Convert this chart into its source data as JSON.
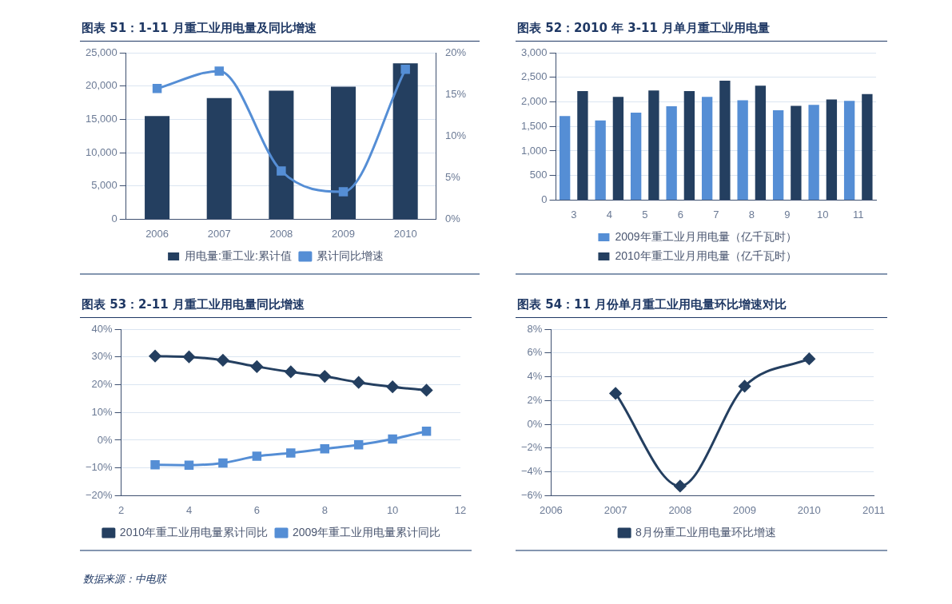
{
  "chart_data": [
    {
      "type": "bar",
      "title": "图表 51：1-11 月重工业用电量及同比增速",
      "categories": [
        "2006",
        "2007",
        "2008",
        "2009",
        "2010"
      ],
      "series": [
        {
          "name": "用电量:重工业:累计值",
          "color": "#243f60",
          "values": [
            15500,
            18200,
            19300,
            19900,
            23400
          ]
        },
        {
          "name": "累计同比增速",
          "type": "line",
          "axis": "y2",
          "marker": "square",
          "color": "#558ed5",
          "values": [
            15.7,
            17.8,
            5.8,
            3.3,
            18.0
          ]
        }
      ],
      "ylim": [
        0,
        25000
      ],
      "yticks": [
        {
          "value": 0,
          "label": "0"
        },
        {
          "value": 5000,
          "label": "5,000"
        },
        {
          "value": 10000,
          "label": "10,000"
        },
        {
          "value": 15000,
          "label": "15,000"
        },
        {
          "value": 20000,
          "label": "20,000"
        },
        {
          "value": 25000,
          "label": "25,000"
        }
      ],
      "y2lim": [
        0,
        20
      ],
      "y2ticks": [
        {
          "value": 0,
          "label": "0%"
        },
        {
          "value": 5,
          "label": "5%"
        },
        {
          "value": 10,
          "label": "10%"
        },
        {
          "value": 15,
          "label": "15%"
        },
        {
          "value": 20,
          "label": "20%"
        }
      ],
      "grid": "y",
      "legend": "bottom"
    },
    {
      "type": "bar",
      "title": "图表 52：2010 年 3-11 月单月重工业用电量",
      "categories": [
        "3",
        "4",
        "5",
        "6",
        "7",
        "8",
        "9",
        "10",
        "11"
      ],
      "series": [
        {
          "name": "2009年重工业月用电量（亿千瓦时）",
          "color": "#558ed5",
          "values": [
            1710,
            1620,
            1780,
            1910,
            2100,
            2030,
            1830,
            1940,
            2020
          ]
        },
        {
          "name": "2010年重工业月用电量（亿千瓦时）",
          "color": "#243f60",
          "values": [
            2220,
            2100,
            2230,
            2220,
            2430,
            2330,
            1920,
            2050,
            2160
          ]
        }
      ],
      "ylim": [
        0,
        3000
      ],
      "yticks": [
        {
          "value": 0,
          "label": "0"
        },
        {
          "value": 500,
          "label": "500"
        },
        {
          "value": 1000,
          "label": "1,000"
        },
        {
          "value": 1500,
          "label": "1,500"
        },
        {
          "value": 2000,
          "label": "2,000"
        },
        {
          "value": 2500,
          "label": "2,500"
        },
        {
          "value": 3000,
          "label": "3,000"
        }
      ],
      "grid": "y",
      "legend": "bottom"
    },
    {
      "type": "line",
      "title": "图表 53：2-11 月重工业用电量同比增速",
      "x": [
        3,
        4,
        5,
        6,
        7,
        8,
        9,
        10,
        11
      ],
      "series": [
        {
          "name": "2010年重工业用电量累计同比",
          "color": "#243f60",
          "marker": "diamond",
          "values": [
            30.3,
            30.0,
            28.8,
            26.5,
            24.6,
            23.0,
            20.8,
            19.2,
            18.0
          ]
        },
        {
          "name": "2009年重工业用电量累计同比",
          "color": "#558ed5",
          "marker": "square",
          "values": [
            -8.9,
            -9.0,
            -8.2,
            -5.8,
            -4.6,
            -3.1,
            -1.7,
            0.4,
            3.2
          ]
        }
      ],
      "xlim": [
        2,
        12
      ],
      "xticks": [
        2,
        4,
        6,
        8,
        10,
        12
      ],
      "ylim": [
        -20,
        40
      ],
      "yticks": [
        {
          "value": -20,
          "label": "−20%"
        },
        {
          "value": -10,
          "label": "−10%"
        },
        {
          "value": 0,
          "label": "0%"
        },
        {
          "value": 10,
          "label": "10%"
        },
        {
          "value": 20,
          "label": "20%"
        },
        {
          "value": 30,
          "label": "30%"
        },
        {
          "value": 40,
          "label": "40%"
        }
      ],
      "grid": "y",
      "legend": "bottom"
    },
    {
      "type": "line",
      "title": "图表 54：11 月份单月重工业用电量环比增速对比",
      "x": [
        2007,
        2008,
        2009,
        2010
      ],
      "series": [
        {
          "name": "8月份重工业用电量环比增速",
          "color": "#243f60",
          "marker": "diamond",
          "values": [
            2.6,
            -5.2,
            3.2,
            5.5
          ]
        }
      ],
      "xlim": [
        2006,
        2011
      ],
      "xticks": [
        2006,
        2007,
        2008,
        2009,
        2010,
        2011
      ],
      "ylim": [
        -6,
        8
      ],
      "yticks": [
        {
          "value": -6,
          "label": "−6%"
        },
        {
          "value": -4,
          "label": "−4%"
        },
        {
          "value": -2,
          "label": "−2%"
        },
        {
          "value": 0,
          "label": "0%"
        },
        {
          "value": 2,
          "label": "2%"
        },
        {
          "value": 4,
          "label": "4%"
        },
        {
          "value": 6,
          "label": "6%"
        },
        {
          "value": 8,
          "label": "8%"
        }
      ],
      "grid": "y",
      "legend": "bottom",
      "annotations": [
        "数据来源：中电联"
      ]
    }
  ]
}
